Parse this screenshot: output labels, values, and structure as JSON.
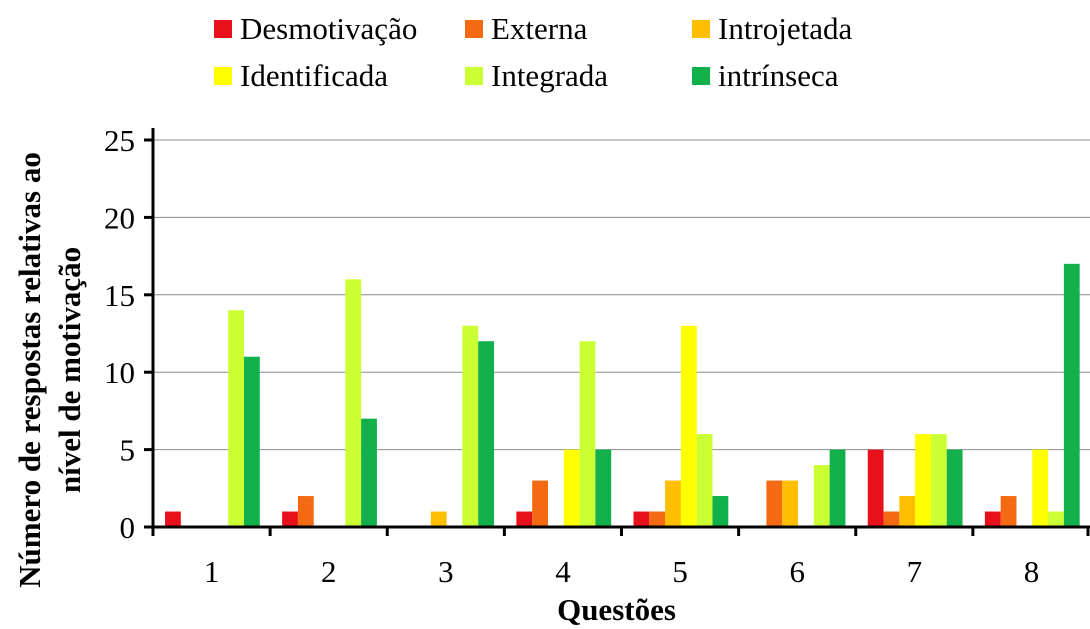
{
  "chart_data": {
    "type": "bar",
    "title": "",
    "xlabel": "Questões",
    "ylabel": "Número de respostas relativas ao nível de motivação",
    "ylabel_lines": [
      "Número de respostas relativas ao",
      "nível de motivação"
    ],
    "ylim": [
      0,
      25
    ],
    "yticks": [
      0,
      5,
      10,
      15,
      20,
      25
    ],
    "grid": "horizontal",
    "legend_position": "top",
    "categories": [
      "1",
      "2",
      "3",
      "4",
      "5",
      "6",
      "7",
      "8"
    ],
    "series": [
      {
        "name": "Desmotivação",
        "color": "#e8101a",
        "values": [
          1,
          1,
          0,
          1,
          1,
          0,
          5,
          1
        ]
      },
      {
        "name": "Externa",
        "color": "#f46a12",
        "values": [
          0,
          2,
          0,
          3,
          1,
          3,
          1,
          2
        ]
      },
      {
        "name": "Introjetada",
        "color": "#ffbf00",
        "values": [
          0,
          0,
          1,
          0,
          3,
          3,
          2,
          0
        ]
      },
      {
        "name": "Identificada",
        "color": "#ffff00",
        "values": [
          0,
          0,
          0,
          5,
          13,
          0,
          6,
          5
        ]
      },
      {
        "name": "Integrada",
        "color": "#ccff33",
        "values": [
          14,
          16,
          13,
          12,
          6,
          4,
          6,
          1
        ]
      },
      {
        "name": "intrínseca",
        "color": "#12b04a",
        "values": [
          11,
          7,
          12,
          5,
          2,
          5,
          5,
          17
        ]
      }
    ]
  }
}
